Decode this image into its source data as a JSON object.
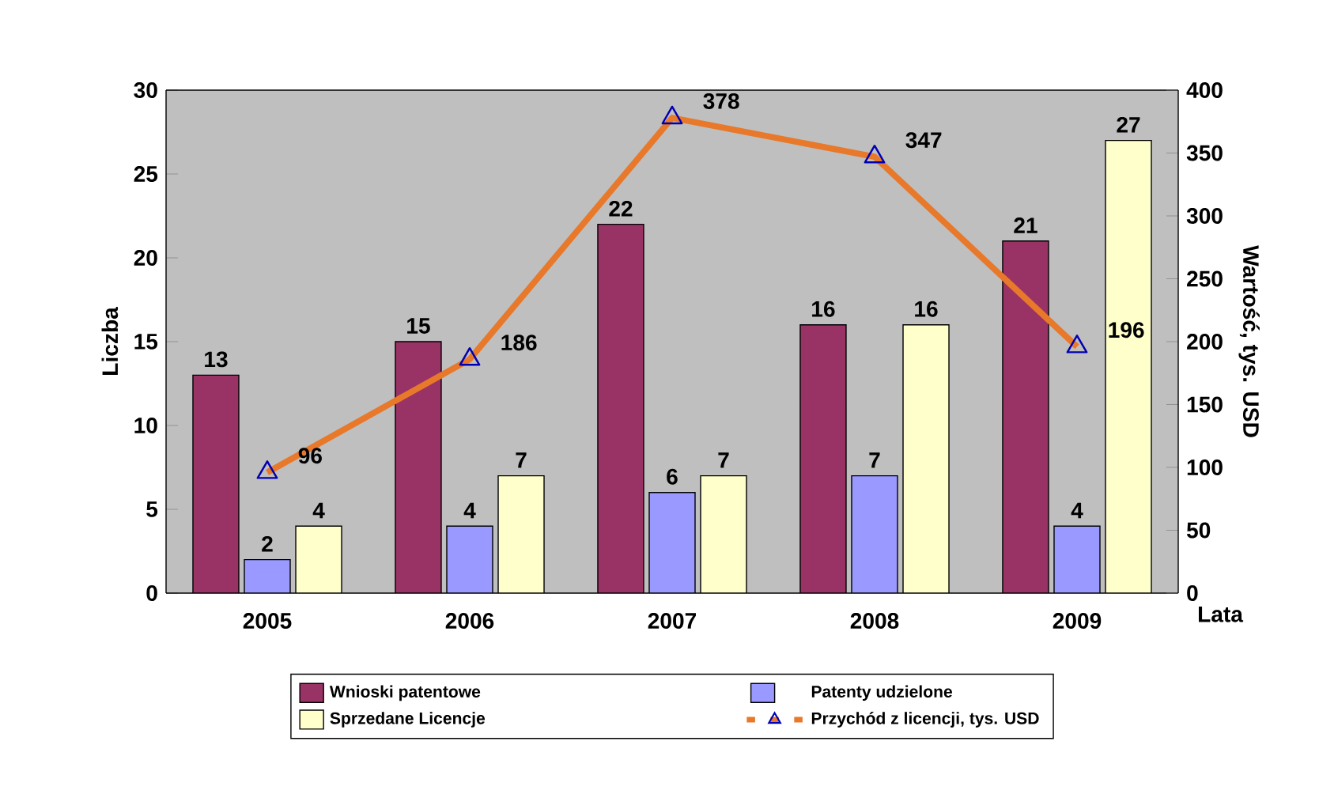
{
  "chart_data": {
    "type": "bar",
    "categories": [
      "2005",
      "2006",
      "2007",
      "2008",
      "2009"
    ],
    "xlabel": "Lata",
    "ylabel": "Liczba",
    "y2label": "Wartość, tys. USD",
    "ylim": [
      0,
      30
    ],
    "yticks": [
      0,
      5,
      10,
      15,
      20,
      25,
      30
    ],
    "y2lim": [
      0,
      400
    ],
    "y2ticks": [
      0,
      50,
      100,
      150,
      200,
      250,
      300,
      350,
      400
    ],
    "series": [
      {
        "name": "Wnioski patentowe",
        "color": "#993366",
        "values": [
          13,
          15,
          22,
          16,
          21
        ]
      },
      {
        "name": "Patenty udzielone",
        "color": "#9999ff",
        "values": [
          2,
          4,
          6,
          7,
          4
        ]
      },
      {
        "name": "Sprzedane Licencje",
        "color": "#ffffcc",
        "values": [
          4,
          7,
          7,
          16,
          27
        ]
      },
      {
        "name": "Przychód z licencji, tys. USD",
        "color": "#e8782a",
        "type": "line",
        "axis": "y2",
        "marker": "triangle",
        "line_style": "solid",
        "values": [
          96,
          186,
          378,
          347,
          196
        ]
      }
    ],
    "data_labels": true,
    "legend": "bottom",
    "grid": false
  }
}
